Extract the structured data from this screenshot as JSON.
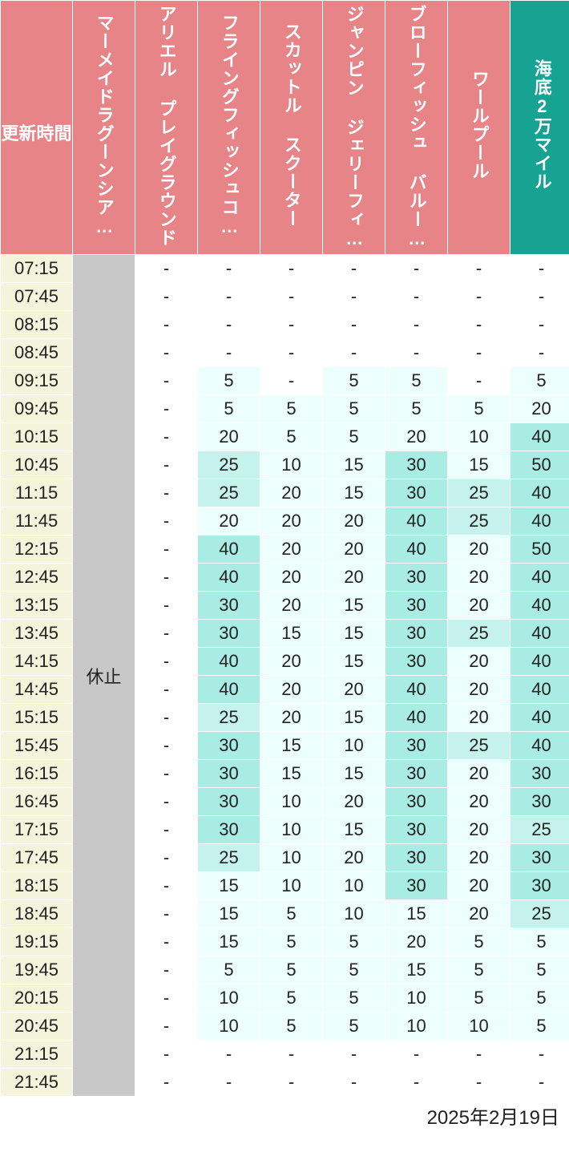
{
  "footer_date": "2025年2月19日",
  "closed_text": "休止",
  "header_colors": {
    "time": "#e78488",
    "normal": "#e78488",
    "highlight": "#16a391"
  },
  "thresholds": {
    "l1_max": 20,
    "l2_max": 25
  },
  "columns": [
    {
      "key": "time",
      "label": "更新時間",
      "vertical": false,
      "highlight": false
    },
    {
      "key": "c1",
      "label": "マーメイドラグーンシア…",
      "vertical": true,
      "highlight": false
    },
    {
      "key": "c2",
      "label": "アリエル プレイグラウンド",
      "vertical": true,
      "highlight": false
    },
    {
      "key": "c3",
      "label": "フライングフィッシュコ…",
      "vertical": true,
      "highlight": false
    },
    {
      "key": "c4",
      "label": "スカットル スクーター",
      "vertical": true,
      "highlight": false
    },
    {
      "key": "c5",
      "label": "ジャンピン ジェリーフィ…",
      "vertical": true,
      "highlight": false
    },
    {
      "key": "c6",
      "label": "ブローフィッシュ バルー…",
      "vertical": true,
      "highlight": false
    },
    {
      "key": "c7",
      "label": "ワールプール",
      "vertical": true,
      "highlight": false
    },
    {
      "key": "c8",
      "label": "海底2万マイル",
      "vertical": true,
      "highlight": true
    }
  ],
  "rows": [
    {
      "time": "07:15",
      "c1": "休止",
      "c2": "-",
      "c3": "-",
      "c4": "-",
      "c5": "-",
      "c6": "-",
      "c7": "-",
      "c8": "-"
    },
    {
      "time": "07:45",
      "c1": "休止",
      "c2": "-",
      "c3": "-",
      "c4": "-",
      "c5": "-",
      "c6": "-",
      "c7": "-",
      "c8": "-"
    },
    {
      "time": "08:15",
      "c1": "休止",
      "c2": "-",
      "c3": "-",
      "c4": "-",
      "c5": "-",
      "c6": "-",
      "c7": "-",
      "c8": "-"
    },
    {
      "time": "08:45",
      "c1": "休止",
      "c2": "-",
      "c3": "-",
      "c4": "-",
      "c5": "-",
      "c6": "-",
      "c7": "-",
      "c8": "-"
    },
    {
      "time": "09:15",
      "c1": "休止",
      "c2": "-",
      "c3": 5,
      "c4": "-",
      "c5": 5,
      "c6": 5,
      "c7": "-",
      "c8": 5
    },
    {
      "time": "09:45",
      "c1": "休止",
      "c2": "-",
      "c3": 5,
      "c4": 5,
      "c5": 5,
      "c6": 5,
      "c7": 5,
      "c8": 20
    },
    {
      "time": "10:15",
      "c1": "休止",
      "c2": "-",
      "c3": 20,
      "c4": 5,
      "c5": 5,
      "c6": 20,
      "c7": 10,
      "c8": 40
    },
    {
      "time": "10:45",
      "c1": "休止",
      "c2": "-",
      "c3": 25,
      "c4": 10,
      "c5": 15,
      "c6": 30,
      "c7": 15,
      "c8": 50
    },
    {
      "time": "11:15",
      "c1": "休止",
      "c2": "-",
      "c3": 25,
      "c4": 20,
      "c5": 15,
      "c6": 30,
      "c7": 25,
      "c8": 40
    },
    {
      "time": "11:45",
      "c1": "休止",
      "c2": "-",
      "c3": 20,
      "c4": 20,
      "c5": 20,
      "c6": 40,
      "c7": 25,
      "c8": 40
    },
    {
      "time": "12:15",
      "c1": "休止",
      "c2": "-",
      "c3": 40,
      "c4": 20,
      "c5": 20,
      "c6": 40,
      "c7": 20,
      "c8": 50
    },
    {
      "time": "12:45",
      "c1": "休止",
      "c2": "-",
      "c3": 40,
      "c4": 20,
      "c5": 20,
      "c6": 30,
      "c7": 20,
      "c8": 40
    },
    {
      "time": "13:15",
      "c1": "休止",
      "c2": "-",
      "c3": 30,
      "c4": 20,
      "c5": 15,
      "c6": 30,
      "c7": 20,
      "c8": 40
    },
    {
      "time": "13:45",
      "c1": "休止",
      "c2": "-",
      "c3": 30,
      "c4": 15,
      "c5": 15,
      "c6": 30,
      "c7": 25,
      "c8": 40
    },
    {
      "time": "14:15",
      "c1": "休止",
      "c2": "-",
      "c3": 40,
      "c4": 20,
      "c5": 15,
      "c6": 30,
      "c7": 20,
      "c8": 40
    },
    {
      "time": "14:45",
      "c1": "休止",
      "c2": "-",
      "c3": 40,
      "c4": 20,
      "c5": 20,
      "c6": 40,
      "c7": 20,
      "c8": 40
    },
    {
      "time": "15:15",
      "c1": "休止",
      "c2": "-",
      "c3": 25,
      "c4": 20,
      "c5": 15,
      "c6": 40,
      "c7": 20,
      "c8": 40
    },
    {
      "time": "15:45",
      "c1": "休止",
      "c2": "-",
      "c3": 30,
      "c4": 15,
      "c5": 10,
      "c6": 30,
      "c7": 25,
      "c8": 40
    },
    {
      "time": "16:15",
      "c1": "休止",
      "c2": "-",
      "c3": 30,
      "c4": 15,
      "c5": 15,
      "c6": 30,
      "c7": 20,
      "c8": 30
    },
    {
      "time": "16:45",
      "c1": "休止",
      "c2": "-",
      "c3": 30,
      "c4": 10,
      "c5": 20,
      "c6": 30,
      "c7": 20,
      "c8": 30
    },
    {
      "time": "17:15",
      "c1": "休止",
      "c2": "-",
      "c3": 30,
      "c4": 10,
      "c5": 15,
      "c6": 30,
      "c7": 20,
      "c8": 25
    },
    {
      "time": "17:45",
      "c1": "休止",
      "c2": "-",
      "c3": 25,
      "c4": 10,
      "c5": 20,
      "c6": 30,
      "c7": 20,
      "c8": 30
    },
    {
      "time": "18:15",
      "c1": "休止",
      "c2": "-",
      "c3": 15,
      "c4": 10,
      "c5": 10,
      "c6": 30,
      "c7": 20,
      "c8": 30
    },
    {
      "time": "18:45",
      "c1": "休止",
      "c2": "-",
      "c3": 15,
      "c4": 5,
      "c5": 10,
      "c6": 15,
      "c7": 20,
      "c8": 25
    },
    {
      "time": "19:15",
      "c1": "休止",
      "c2": "-",
      "c3": 15,
      "c4": 5,
      "c5": 5,
      "c6": 20,
      "c7": 5,
      "c8": 5
    },
    {
      "time": "19:45",
      "c1": "休止",
      "c2": "-",
      "c3": 5,
      "c4": 5,
      "c5": 5,
      "c6": 15,
      "c7": 5,
      "c8": 5
    },
    {
      "time": "20:15",
      "c1": "休止",
      "c2": "-",
      "c3": 10,
      "c4": 5,
      "c5": 5,
      "c6": 10,
      "c7": 5,
      "c8": 5
    },
    {
      "time": "20:45",
      "c1": "休止",
      "c2": "-",
      "c3": 10,
      "c4": 5,
      "c5": 5,
      "c6": 10,
      "c7": 10,
      "c8": 5
    },
    {
      "time": "21:15",
      "c1": "休止",
      "c2": "-",
      "c3": "-",
      "c4": "-",
      "c5": "-",
      "c6": "-",
      "c7": "-",
      "c8": "-"
    },
    {
      "time": "21:45",
      "c1": "休止",
      "c2": "-",
      "c3": "-",
      "c4": "-",
      "c5": "-",
      "c6": "-",
      "c7": "-",
      "c8": "-"
    }
  ]
}
